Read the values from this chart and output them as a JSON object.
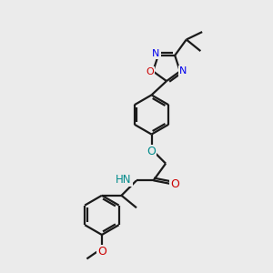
{
  "bg_color": "#ebebeb",
  "bond_color": "#1a1a1a",
  "N_color": "#0000ee",
  "O_color": "#cc0000",
  "O_teal_color": "#008b8b",
  "linewidth": 1.6,
  "figsize": [
    3.0,
    3.0
  ],
  "dpi": 100,
  "xlim": [
    0,
    10
  ],
  "ylim": [
    0,
    10
  ]
}
